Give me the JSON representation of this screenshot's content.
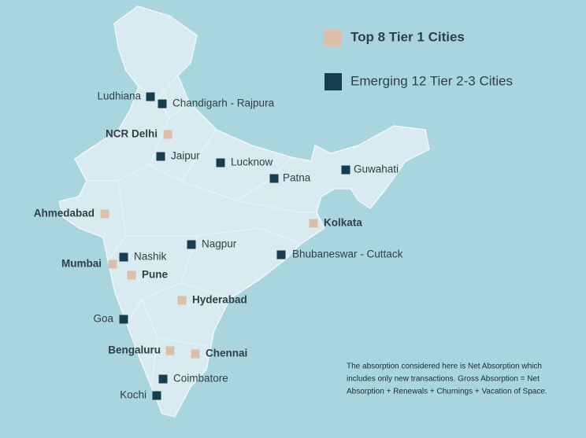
{
  "legend": {
    "tier1": "Top 8 Tier 1 Cities",
    "emerging": "Emerging 12 Tier 2-3 Cities"
  },
  "tier1_cities": [
    "NCR Delhi",
    "Ahmedabad",
    "Kolkata",
    "Mumbai",
    "Pune",
    "Hyderabad",
    "Bengaluru",
    "Chennai"
  ],
  "emerging_cities": [
    "Ludhiana",
    "Chandigarh - Rajpura",
    "Jaipur",
    "Lucknow",
    "Patna",
    "Guwahati",
    "Nashik",
    "Nagpur",
    "Bhubaneswar - Cuttack",
    "Goa",
    "Coimbatore",
    "Kochi"
  ],
  "note": [
    "The absorption considered here is Net Absorption which",
    "includes only new transactions. Gross Absorption = Net",
    "Absorption + Renewals + Churnings + Vacation of Space."
  ]
}
